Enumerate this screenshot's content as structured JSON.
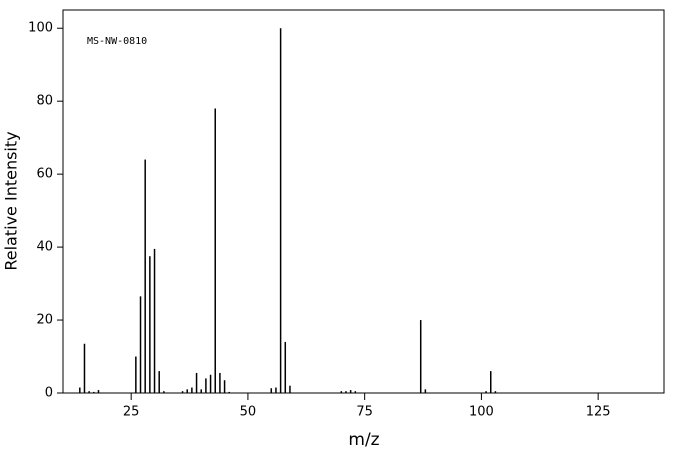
{
  "chart_data": {
    "type": "spectrum",
    "annotation": "MS-NW-0810",
    "x_label": "m/z",
    "y_label": "Relative Intensity",
    "x": [
      14,
      15,
      16,
      17,
      18,
      26,
      27,
      28,
      29,
      30,
      31,
      32,
      36,
      37,
      38,
      39,
      40,
      41,
      42,
      43,
      44,
      45,
      46,
      55,
      56,
      57,
      58,
      59,
      70,
      71,
      72,
      73,
      87,
      88,
      101,
      102,
      103
    ],
    "values": [
      1.5,
      13.5,
      0.5,
      0.3,
      0.8,
      10,
      26.5,
      64,
      37.5,
      39.5,
      6,
      0.5,
      0.5,
      1,
      1.5,
      5.5,
      1,
      4,
      5,
      78,
      5.5,
      3.5,
      0.3,
      1.3,
      1.5,
      100,
      14,
      2,
      0.5,
      0.5,
      0.8,
      0.5,
      20,
      1,
      0.5,
      6,
      0.5
    ],
    "color": "#000000",
    "xlim": [
      10.4,
      139.1
    ],
    "ylim": [
      0,
      105
    ],
    "xticks": [
      25,
      50,
      75,
      100,
      125
    ],
    "yticks": [
      0,
      20,
      40,
      60,
      80,
      100
    ]
  }
}
